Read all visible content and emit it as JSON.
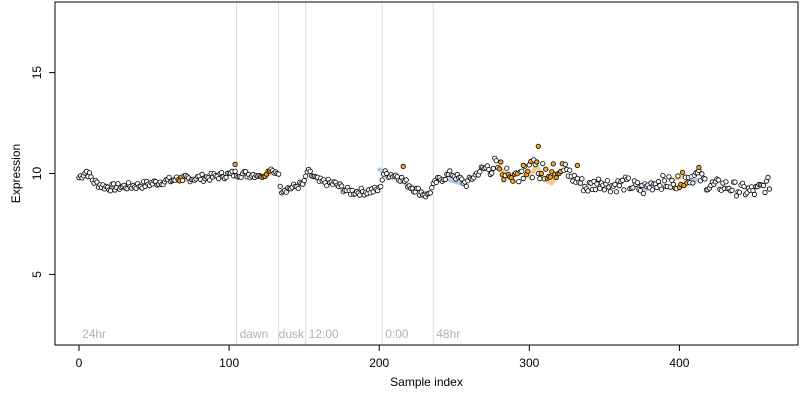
{
  "chart_data": {
    "type": "scatter",
    "xlabel": "Sample index",
    "ylabel": "Expression",
    "xlim": [
      -16,
      479
    ],
    "ylim": [
      1.5,
      18.5
    ],
    "x_ticks": [
      0,
      100,
      200,
      300,
      400
    ],
    "y_ticks": [
      5,
      10,
      15
    ],
    "grid": false,
    "colors": {
      "point_fill_default": "#ffffff",
      "point_fill_highlight": "#f5a623",
      "point_stroke": "#000000",
      "blue_band": "#9fc0e8",
      "orange_band": "#f5c27a",
      "phase_line": "#dcdcdc",
      "annotation_text": "#b0b0b0"
    },
    "phase_lines": [
      105,
      133,
      151,
      202,
      236
    ],
    "annotations": [
      {
        "label": "24hr",
        "x": 2
      },
      {
        "label": "dawn",
        "x": 107
      },
      {
        "label": "dusk",
        "x": 133
      },
      {
        "label": "12:00",
        "x": 153
      },
      {
        "label": "0:00",
        "x": 204
      },
      {
        "label": "48hr",
        "x": 238
      }
    ],
    "blue_segments": [
      [
        [
          18,
          9.4
        ],
        [
          24,
          9.3
        ]
      ],
      [
        [
          30,
          9.4
        ],
        [
          40,
          9.5
        ]
      ],
      [
        [
          140,
          9.3
        ],
        [
          150,
          9.5
        ]
      ],
      [
        [
          200,
          10.2
        ],
        [
          210,
          9.8
        ],
        [
          220,
          9.4
        ],
        [
          232,
          9.0
        ]
      ],
      [
        [
          245,
          9.7
        ],
        [
          255,
          9.5
        ]
      ],
      [
        [
          370,
          9.5
        ],
        [
          378,
          9.2
        ]
      ],
      [
        [
          402,
          9.4
        ],
        [
          412,
          9.7
        ]
      ]
    ],
    "orange_segments": [
      [
        [
          66,
          9.6
        ],
        [
          72,
          9.7
        ]
      ],
      [
        [
          120,
          9.9
        ],
        [
          128,
          10.0
        ]
      ],
      [
        [
          280,
          10.3
        ],
        [
          290,
          9.6
        ]
      ],
      [
        [
          300,
          9.8
        ],
        [
          305,
          10.4
        ],
        [
          310,
          9.7
        ],
        [
          315,
          9.5
        ],
        [
          320,
          10.1
        ]
      ],
      [
        [
          396,
          9.7
        ],
        [
          404,
          9.9
        ]
      ]
    ],
    "highlight_points": [
      [
        104,
        10.45
      ],
      [
        216,
        10.35
      ],
      [
        306,
        11.35
      ],
      [
        296,
        10.4
      ],
      [
        413,
        10.3
      ],
      [
        332,
        10.4
      ]
    ],
    "series_trend": [
      [
        0,
        9.8
      ],
      [
        5,
        10.1
      ],
      [
        10,
        9.6
      ],
      [
        15,
        9.4
      ],
      [
        20,
        9.3
      ],
      [
        30,
        9.35
      ],
      [
        40,
        9.4
      ],
      [
        55,
        9.6
      ],
      [
        70,
        9.75
      ],
      [
        85,
        9.8
      ],
      [
        95,
        9.9
      ],
      [
        105,
        10.0
      ],
      [
        115,
        9.95
      ],
      [
        125,
        10.0
      ],
      [
        132,
        10.15
      ],
      [
        135,
        9.2
      ],
      [
        142,
        9.3
      ],
      [
        150,
        9.5
      ],
      [
        152,
        10.1
      ],
      [
        160,
        9.6
      ],
      [
        170,
        9.5
      ],
      [
        180,
        9.1
      ],
      [
        190,
        9.1
      ],
      [
        200,
        9.2
      ],
      [
        203,
        10.0
      ],
      [
        212,
        9.9
      ],
      [
        222,
        9.3
      ],
      [
        232,
        8.9
      ],
      [
        238,
        9.6
      ],
      [
        248,
        10.0
      ],
      [
        258,
        9.5
      ],
      [
        268,
        10.2
      ],
      [
        278,
        10.4
      ],
      [
        288,
        9.8
      ],
      [
        298,
        10.3
      ],
      [
        305,
        10.2
      ],
      [
        312,
        10.0
      ],
      [
        322,
        10.2
      ],
      [
        330,
        9.8
      ],
      [
        338,
        9.3
      ],
      [
        348,
        9.6
      ],
      [
        355,
        9.4
      ],
      [
        365,
        9.5
      ],
      [
        375,
        9.2
      ],
      [
        385,
        9.6
      ],
      [
        395,
        9.5
      ],
      [
        405,
        9.8
      ],
      [
        412,
        9.9
      ],
      [
        420,
        9.4
      ],
      [
        430,
        9.4
      ],
      [
        440,
        9.2
      ],
      [
        450,
        9.1
      ],
      [
        460,
        9.5
      ]
    ],
    "n_points": 460
  }
}
